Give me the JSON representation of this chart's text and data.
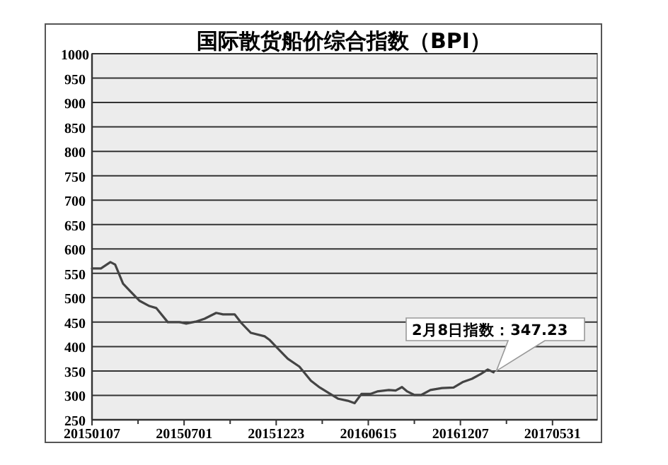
{
  "chart_data": {
    "type": "line",
    "title": "国际散货船价综合指数（BPI）",
    "x": [
      "2015-01-07",
      "2015-01-24",
      "2015-02-11",
      "2015-02-20",
      "2015-03-07",
      "2015-03-22",
      "2015-04-07",
      "2015-04-26",
      "2015-05-09",
      "2015-05-31",
      "2015-06-22",
      "2015-07-05",
      "2015-07-23",
      "2015-08-09",
      "2015-08-31",
      "2015-09-13",
      "2015-10-05",
      "2015-10-18",
      "2015-11-05",
      "2015-12-01",
      "2015-12-10",
      "2015-12-27",
      "2016-01-14",
      "2016-02-05",
      "2016-02-27",
      "2016-03-15",
      "2016-04-02",
      "2016-04-19",
      "2016-05-07",
      "2016-05-20",
      "2016-06-02",
      "2016-06-19",
      "2016-07-02",
      "2016-07-24",
      "2016-08-06",
      "2016-08-18",
      "2016-08-28",
      "2016-09-10",
      "2016-09-24",
      "2016-10-11",
      "2016-11-02",
      "2016-11-24",
      "2016-12-11",
      "2016-12-29",
      "2017-01-15",
      "2017-01-28",
      "2017-02-08"
    ],
    "series": [
      {
        "color": "#444444",
        "values": [
          560,
          560,
          573,
          568,
          529,
          512,
          494,
          483,
          479,
          450,
          450,
          447,
          451,
          457,
          469,
          466,
          466,
          448,
          428,
          421,
          414,
          395,
          375,
          359,
          330,
          316,
          304,
          293,
          289,
          284,
          303,
          303,
          308,
          311,
          310,
          317,
          308,
          301,
          301,
          311,
          315,
          316,
          327,
          334,
          344,
          353,
          347.23
        ]
      }
    ],
    "xlim": [
      "2015-01-07",
      "2017-08-24"
    ],
    "xticks": [
      {
        "value": "2015-01-07",
        "label": "20150107"
      },
      {
        "value": "2015-07-01",
        "label": "20150701"
      },
      {
        "value": "2015-12-23",
        "label": "20151223"
      },
      {
        "value": "2016-06-15",
        "label": "20160615"
      },
      {
        "value": "2016-12-07",
        "label": "20161207"
      },
      {
        "value": "2017-05-31",
        "label": "20170531"
      }
    ],
    "ylim": [
      250,
      1000
    ],
    "yticks": [
      250,
      300,
      350,
      400,
      450,
      500,
      550,
      600,
      650,
      700,
      750,
      800,
      850,
      900,
      950,
      1000
    ],
    "grid": "y",
    "marker": "none",
    "line_style": "solid",
    "annotations": [
      {
        "text": "2月8日指数：347.23",
        "x": "2017-02-08",
        "y": 347.23
      }
    ]
  }
}
